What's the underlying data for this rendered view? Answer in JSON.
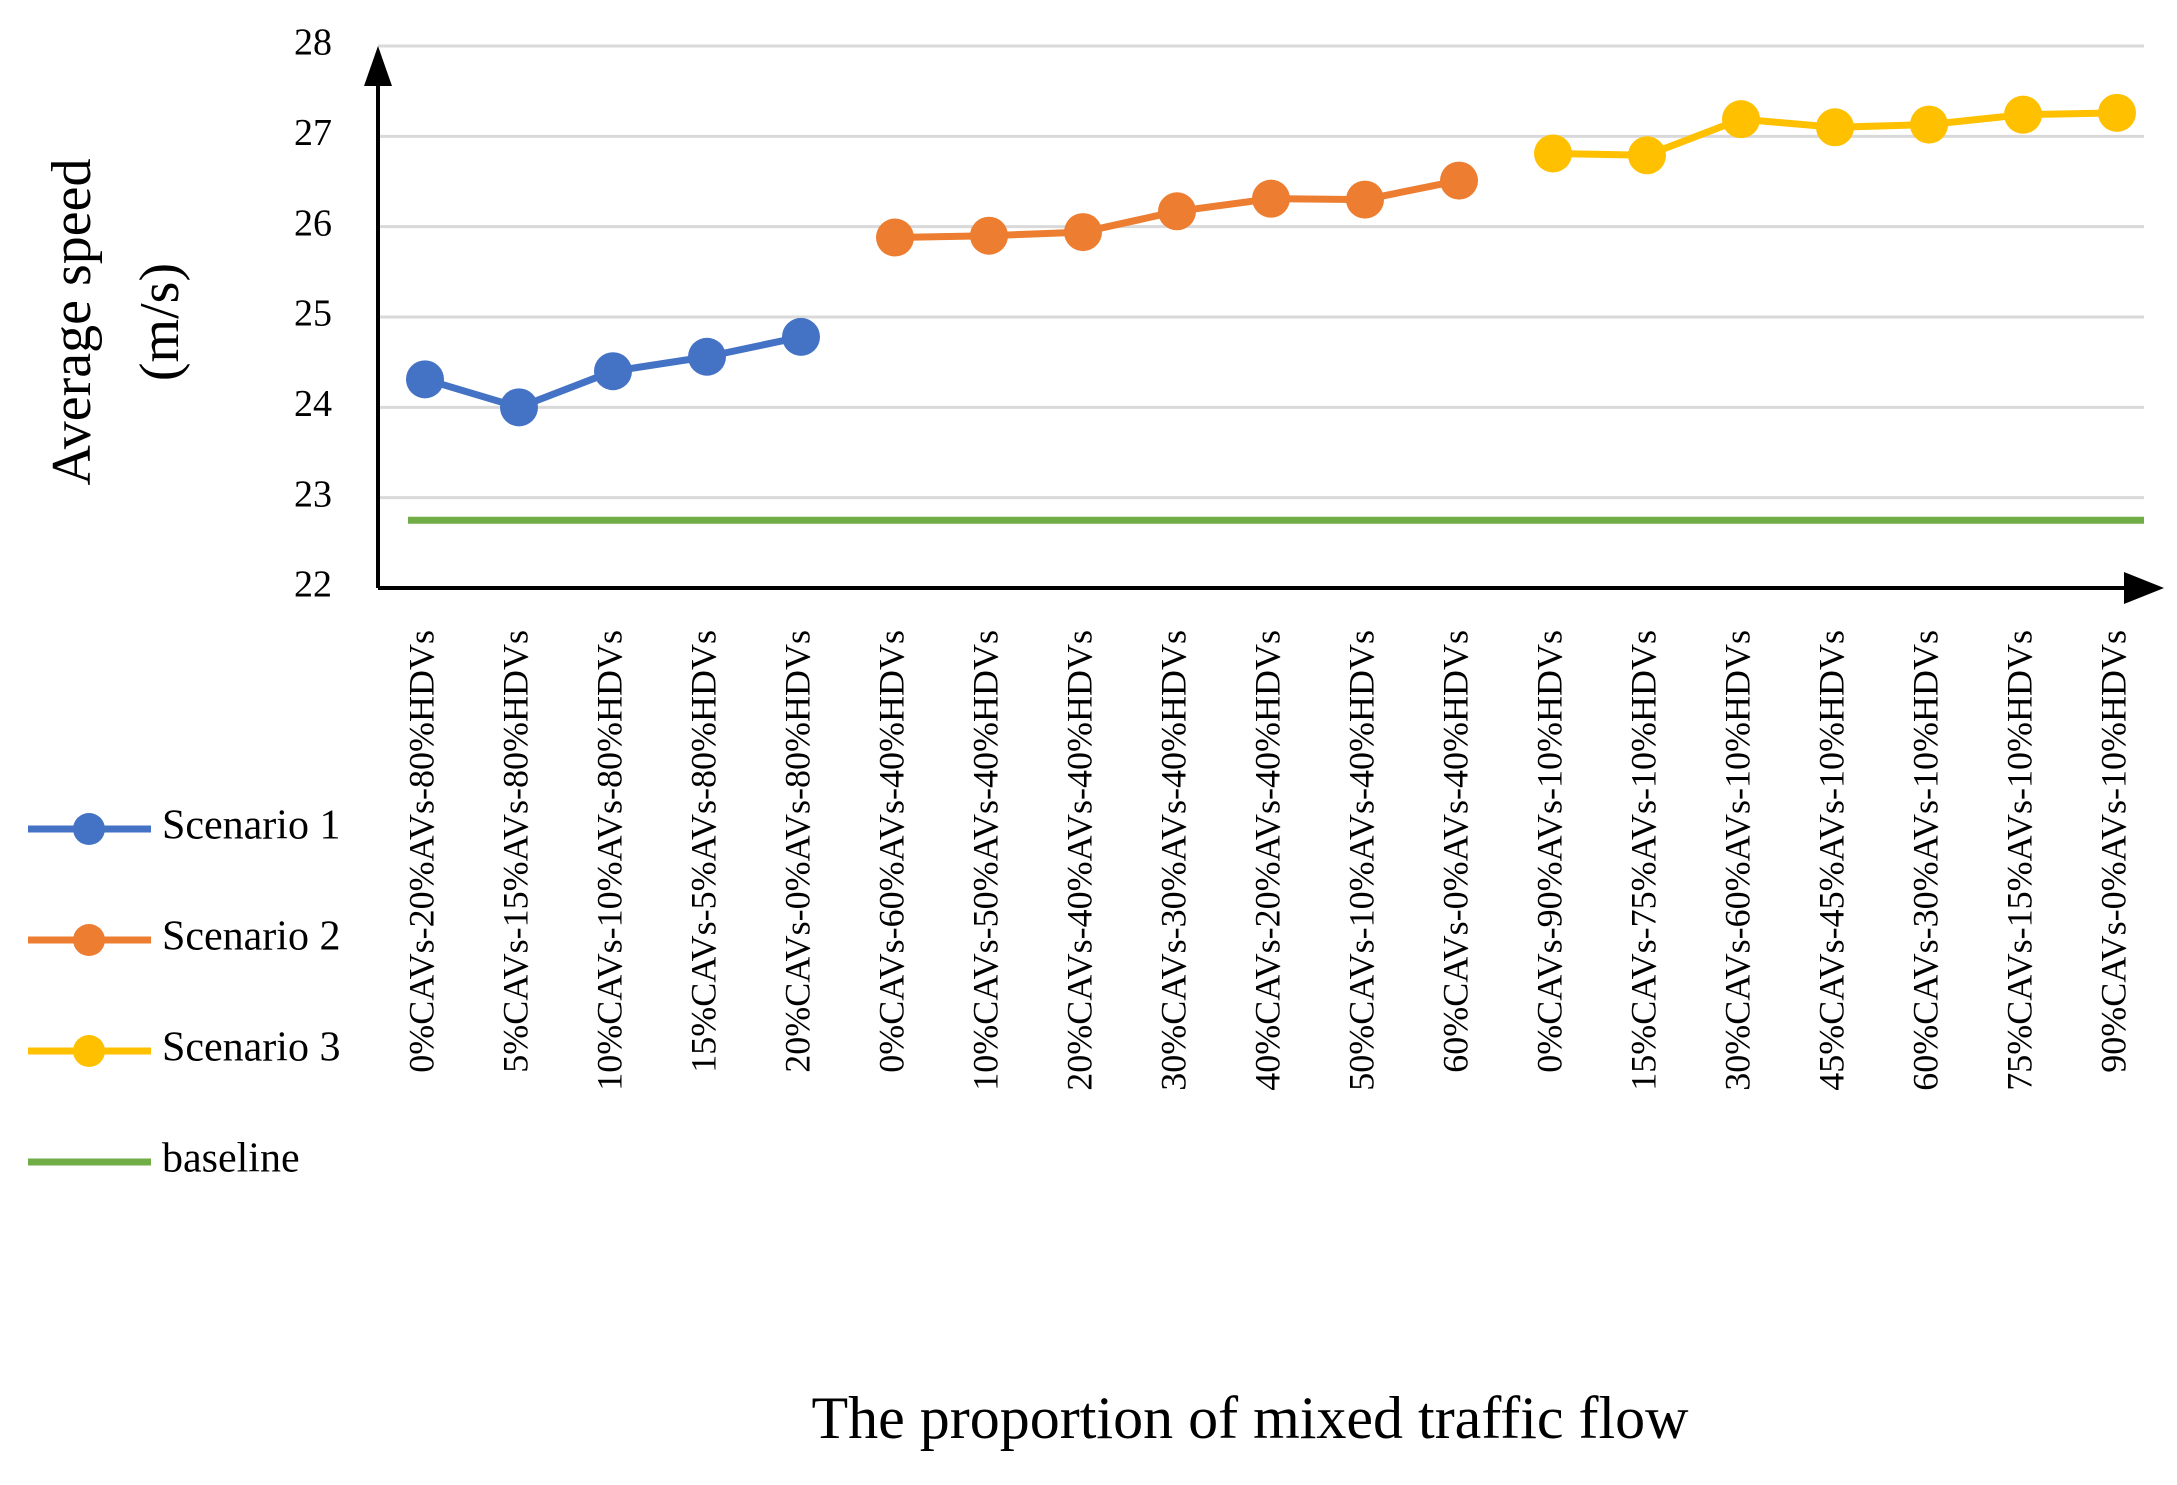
{
  "chart_data": {
    "type": "line",
    "x_label": "The proportion of mixed traffic flow",
    "y_label": [
      "Average speed",
      "(m/s)"
    ],
    "categories": [
      "0%CAVs-20%AVs-80%HDVs",
      "5%CAVs-15%AVs-80%HDVs",
      "10%CAVs-10%AVs-80%HDVs",
      "15%CAVs-5%AVs-80%HDVs",
      "20%CAVs-0%AVs-80%HDVs",
      "0%CAVs-60%AVs-40%HDVs",
      "10%CAVs-50%AVs-40%HDVs",
      "20%CAVs-40%AVs-40%HDVs",
      "30%CAVs-30%AVs-40%HDVs",
      "40%CAVs-20%AVs-40%HDVs",
      "50%CAVs-10%AVs-40%HDVs",
      "60%CAVs-0%AVs-40%HDVs",
      "0%CAVs-90%AVs-10%HDVs",
      "15%CAVs-75%AVs-10%HDVs",
      "30%CAVs-60%AVs-10%HDVs",
      "45%CAVs-45%AVs-10%HDVs",
      "60%CAVs-30%AVs-10%HDVs",
      "75%CAVs-15%AVs-10%HDVs",
      "90%CAVs-0%AVs-10%HDVs"
    ],
    "series": [
      {
        "name": "Scenario 1",
        "color": "#4472c4",
        "markers": true,
        "values": [
          24.31,
          24.0,
          24.4,
          24.56,
          24.78,
          null,
          null,
          null,
          null,
          null,
          null,
          null,
          null,
          null,
          null,
          null,
          null,
          null,
          null
        ]
      },
      {
        "name": "Scenario 2",
        "color": "#ed7d31",
        "markers": true,
        "values": [
          null,
          null,
          null,
          null,
          null,
          25.88,
          25.9,
          25.94,
          26.17,
          26.31,
          26.3,
          26.51,
          null,
          null,
          null,
          null,
          null,
          null,
          null
        ]
      },
      {
        "name": "Scenario 3",
        "color": "#ffc000",
        "markers": true,
        "values": [
          null,
          null,
          null,
          null,
          null,
          null,
          null,
          null,
          null,
          null,
          null,
          null,
          26.81,
          26.79,
          27.19,
          27.1,
          27.13,
          27.24,
          27.26
        ]
      },
      {
        "name": "baseline",
        "color": "#70ad47",
        "markers": false,
        "values": [
          22.75,
          22.75,
          22.75,
          22.75,
          22.75,
          22.75,
          22.75,
          22.75,
          22.75,
          22.75,
          22.75,
          22.75,
          22.75,
          22.75,
          22.75,
          22.75,
          22.75,
          22.75,
          22.75
        ]
      }
    ],
    "ylim": [
      22,
      28
    ],
    "yticks": [
      22,
      23,
      24,
      25,
      26,
      27,
      28
    ],
    "grid": true,
    "legend": "left"
  }
}
